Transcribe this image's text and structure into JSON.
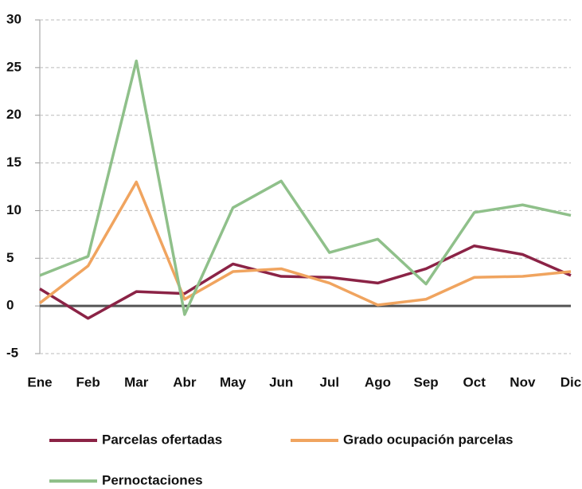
{
  "chart_data": {
    "type": "line",
    "categories": [
      "Ene",
      "Feb",
      "Mar",
      "Abr",
      "May",
      "Jun",
      "Jul",
      "Ago",
      "Sep",
      "Oct",
      "Nov",
      "Dic"
    ],
    "series": [
      {
        "name": "Parcelas ofertadas",
        "color": "#8b2346",
        "values": [
          1.8,
          -1.3,
          1.5,
          1.3,
          4.4,
          3.1,
          3.0,
          2.4,
          3.9,
          6.3,
          5.4,
          3.2
        ]
      },
      {
        "name": "Grado ocupación parcelas",
        "color": "#f0a45f",
        "values": [
          0.3,
          4.2,
          13.0,
          0.7,
          3.6,
          3.9,
          2.4,
          0.1,
          0.7,
          3.0,
          3.1,
          3.6
        ]
      },
      {
        "name": "Pernoctaciones",
        "color": "#8fc08a",
        "values": [
          3.2,
          5.2,
          25.7,
          -0.9,
          10.3,
          13.1,
          5.6,
          7.0,
          2.3,
          9.8,
          10.6,
          9.5
        ]
      }
    ],
    "ylim": [
      -5,
      30
    ],
    "yticks": [
      -5,
      0,
      5,
      10,
      15,
      20,
      25,
      30
    ],
    "grid": true
  }
}
